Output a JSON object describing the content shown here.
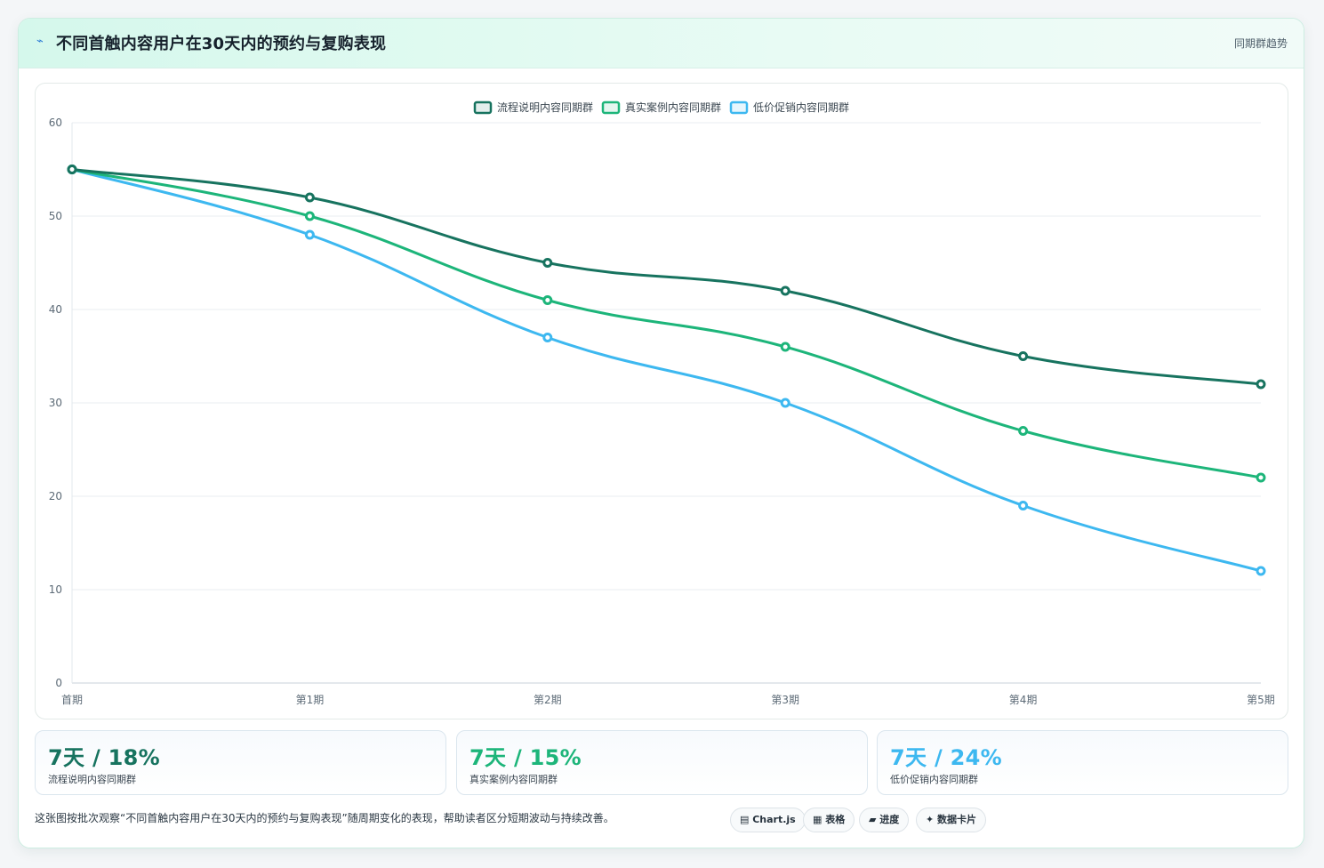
{
  "header": {
    "icon": "sparkline-icon",
    "title": "不同首触内容用户在30天内的预约与复购表现",
    "tag": "同期群趋势"
  },
  "chart_data": {
    "type": "line",
    "categories": [
      "首期",
      "第1期",
      "第2期",
      "第3期",
      "第4期",
      "第5期"
    ],
    "series": [
      {
        "name": "流程说明内容同期群",
        "color": "#17735f",
        "values": [
          55,
          52,
          45,
          42,
          35,
          32
        ]
      },
      {
        "name": "真实案例内容同期群",
        "color": "#1db57a",
        "values": [
          55,
          50,
          41,
          36,
          27,
          22
        ]
      },
      {
        "name": "低价促销内容同期群",
        "color": "#3db8f0",
        "values": [
          55,
          48,
          37,
          30,
          19,
          12
        ]
      }
    ],
    "ylim": [
      0,
      60
    ],
    "yticks": [
      0,
      10,
      20,
      30,
      40,
      50,
      60
    ],
    "grid": true,
    "legend_position": "top-center",
    "smooth": true
  },
  "stats": [
    {
      "value": "7天 / 18%",
      "label": "流程说明内容同期群",
      "color": "#17735f"
    },
    {
      "value": "7天 / 15%",
      "label": "真实案例内容同期群",
      "color": "#1db57a"
    },
    {
      "value": "7天 / 24%",
      "label": "低价促销内容同期群",
      "color": "#3db8f0"
    }
  ],
  "footer": {
    "note": "这张图按批次观察“不同首触内容用户在30天内的预约与复购表现”随周期变化的表现，帮助读者区分短期波动与持续改善。",
    "pills": [
      {
        "icon": "chart-icon",
        "label": "▤ Chart.js"
      },
      {
        "icon": "table-icon",
        "label": "▦ 表格"
      },
      {
        "icon": "progress-icon",
        "label": "▰ 进度"
      },
      {
        "icon": "card-icon",
        "label": "✦ 数据卡片"
      }
    ]
  }
}
